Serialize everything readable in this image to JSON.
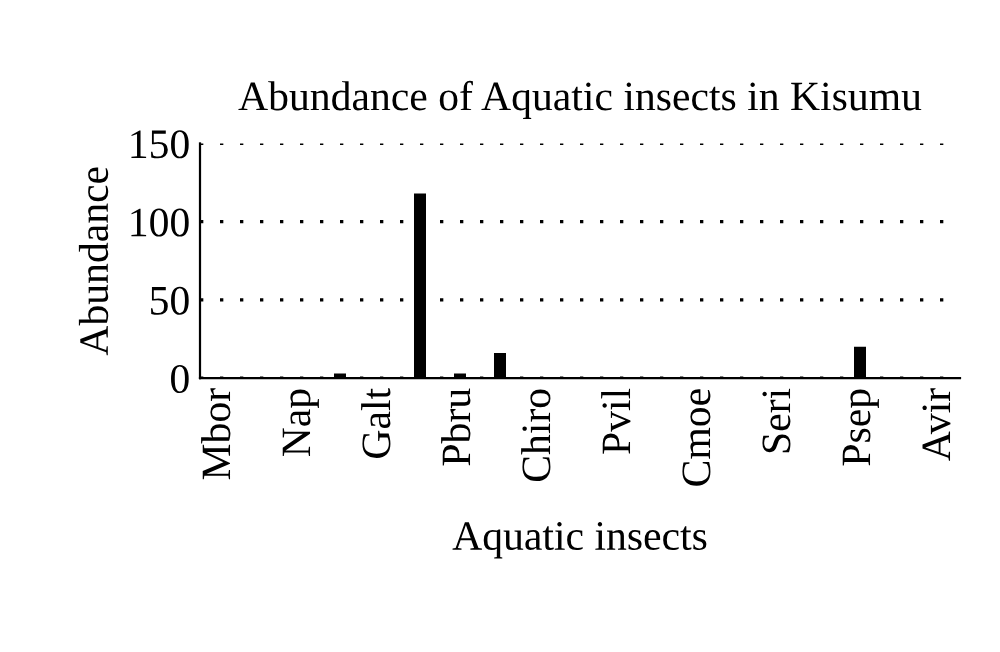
{
  "chart_data": {
    "type": "bar",
    "title": "Abundance of Aquatic insects in Kisumu",
    "xlabel": "Aquatic insects",
    "ylabel": "Abundance",
    "categories": [
      "Mbor",
      null,
      "Nap",
      null,
      "Galt",
      null,
      "Pbru",
      null,
      "Chiro",
      null,
      "Pvil",
      null,
      "Cmoe",
      null,
      "Seri",
      null,
      "Psep",
      null,
      "Avir"
    ],
    "values": [
      0,
      0,
      0,
      3,
      0,
      118,
      3,
      16,
      0,
      0,
      0,
      0,
      0,
      0,
      0,
      0,
      20,
      0,
      0
    ],
    "color": "#000000",
    "ylim": [
      0,
      150
    ],
    "yticks": [
      0,
      50,
      100,
      150
    ],
    "grid": "y",
    "line_style": "dotted"
  }
}
